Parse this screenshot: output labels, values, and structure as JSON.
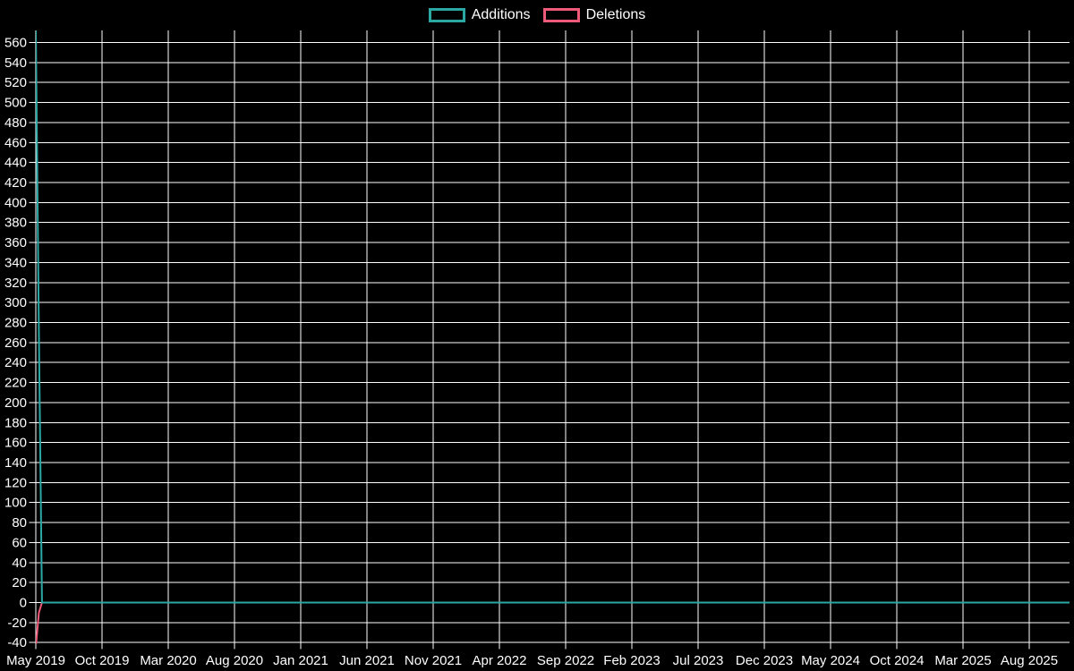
{
  "chart_data": {
    "type": "line",
    "legend_position": "top-center",
    "background_color": "#000000",
    "gridline_color": "#ffffff",
    "text_color": "#ffffff",
    "x_tick_labels": [
      "May 2019",
      "Oct 2019",
      "Mar 2020",
      "Aug 2020",
      "Jan 2021",
      "Jun 2021",
      "Nov 2021",
      "Apr 2022",
      "Sep 2022",
      "Feb 2023",
      "Jul 2023",
      "Dec 2023",
      "May 2024",
      "Oct 2024",
      "Mar 2025",
      "Aug 2025"
    ],
    "y_tick_labels": [
      560,
      540,
      520,
      500,
      480,
      460,
      440,
      420,
      400,
      380,
      360,
      340,
      320,
      300,
      280,
      260,
      240,
      220,
      200,
      180,
      160,
      140,
      120,
      100,
      80,
      60,
      40,
      20,
      0,
      -20,
      -40
    ],
    "y_range": [
      -41,
      572
    ],
    "grid": true,
    "total_weeks": 334,
    "series": [
      {
        "name": "Additions",
        "color": "#2ca8a4",
        "points": [
          [
            0,
            574
          ],
          [
            1,
            270
          ],
          [
            2,
            0
          ],
          [
            334,
            0
          ]
        ]
      },
      {
        "name": "Deletions",
        "color": "#ee5a77",
        "points": [
          [
            0,
            -45
          ],
          [
            1,
            -10
          ],
          [
            2,
            0
          ],
          [
            334,
            0
          ]
        ]
      }
    ]
  }
}
